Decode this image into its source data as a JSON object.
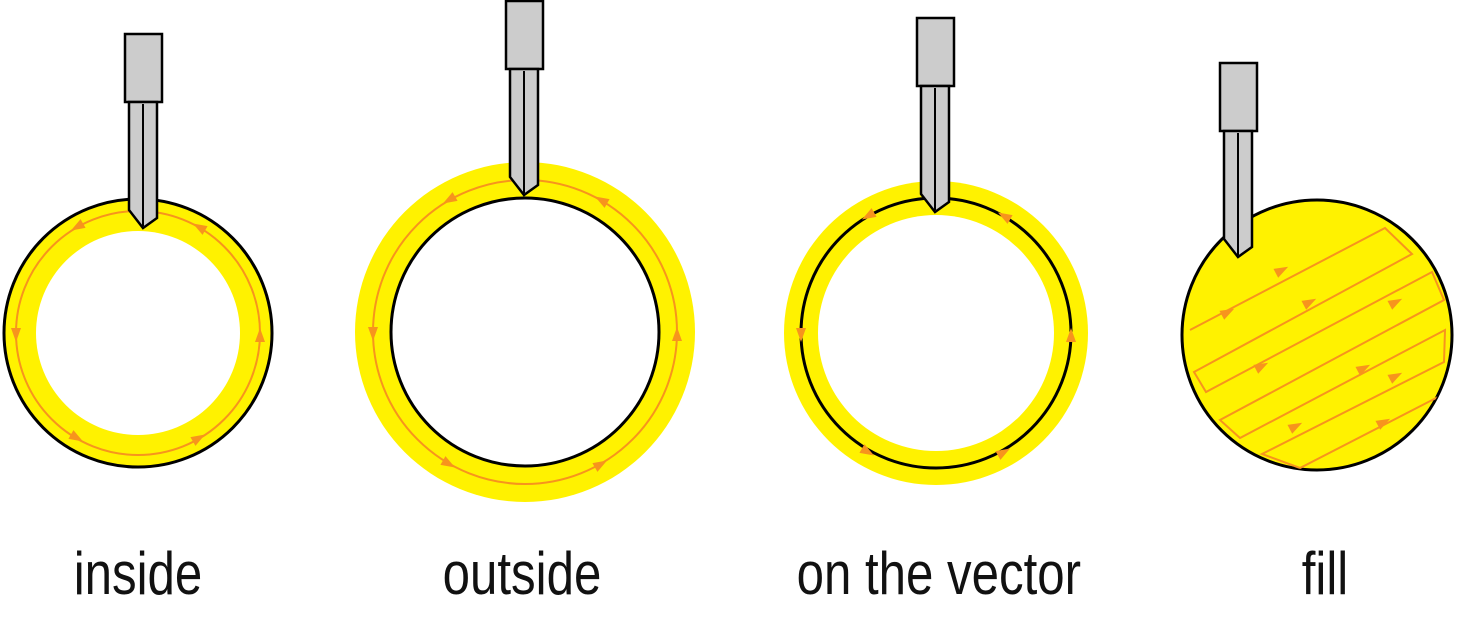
{
  "colors": {
    "cut_area": "#fff200",
    "toolpath": "#f7941d",
    "vector": "#000000",
    "bit_fill": "#cccccc",
    "bit_stroke": "#000000"
  },
  "panels": [
    {
      "id": "inside",
      "label": "inside"
    },
    {
      "id": "outside",
      "label": "outside"
    },
    {
      "id": "on-the-vector",
      "label": "on the vector"
    },
    {
      "id": "fill",
      "label": "fill"
    }
  ]
}
